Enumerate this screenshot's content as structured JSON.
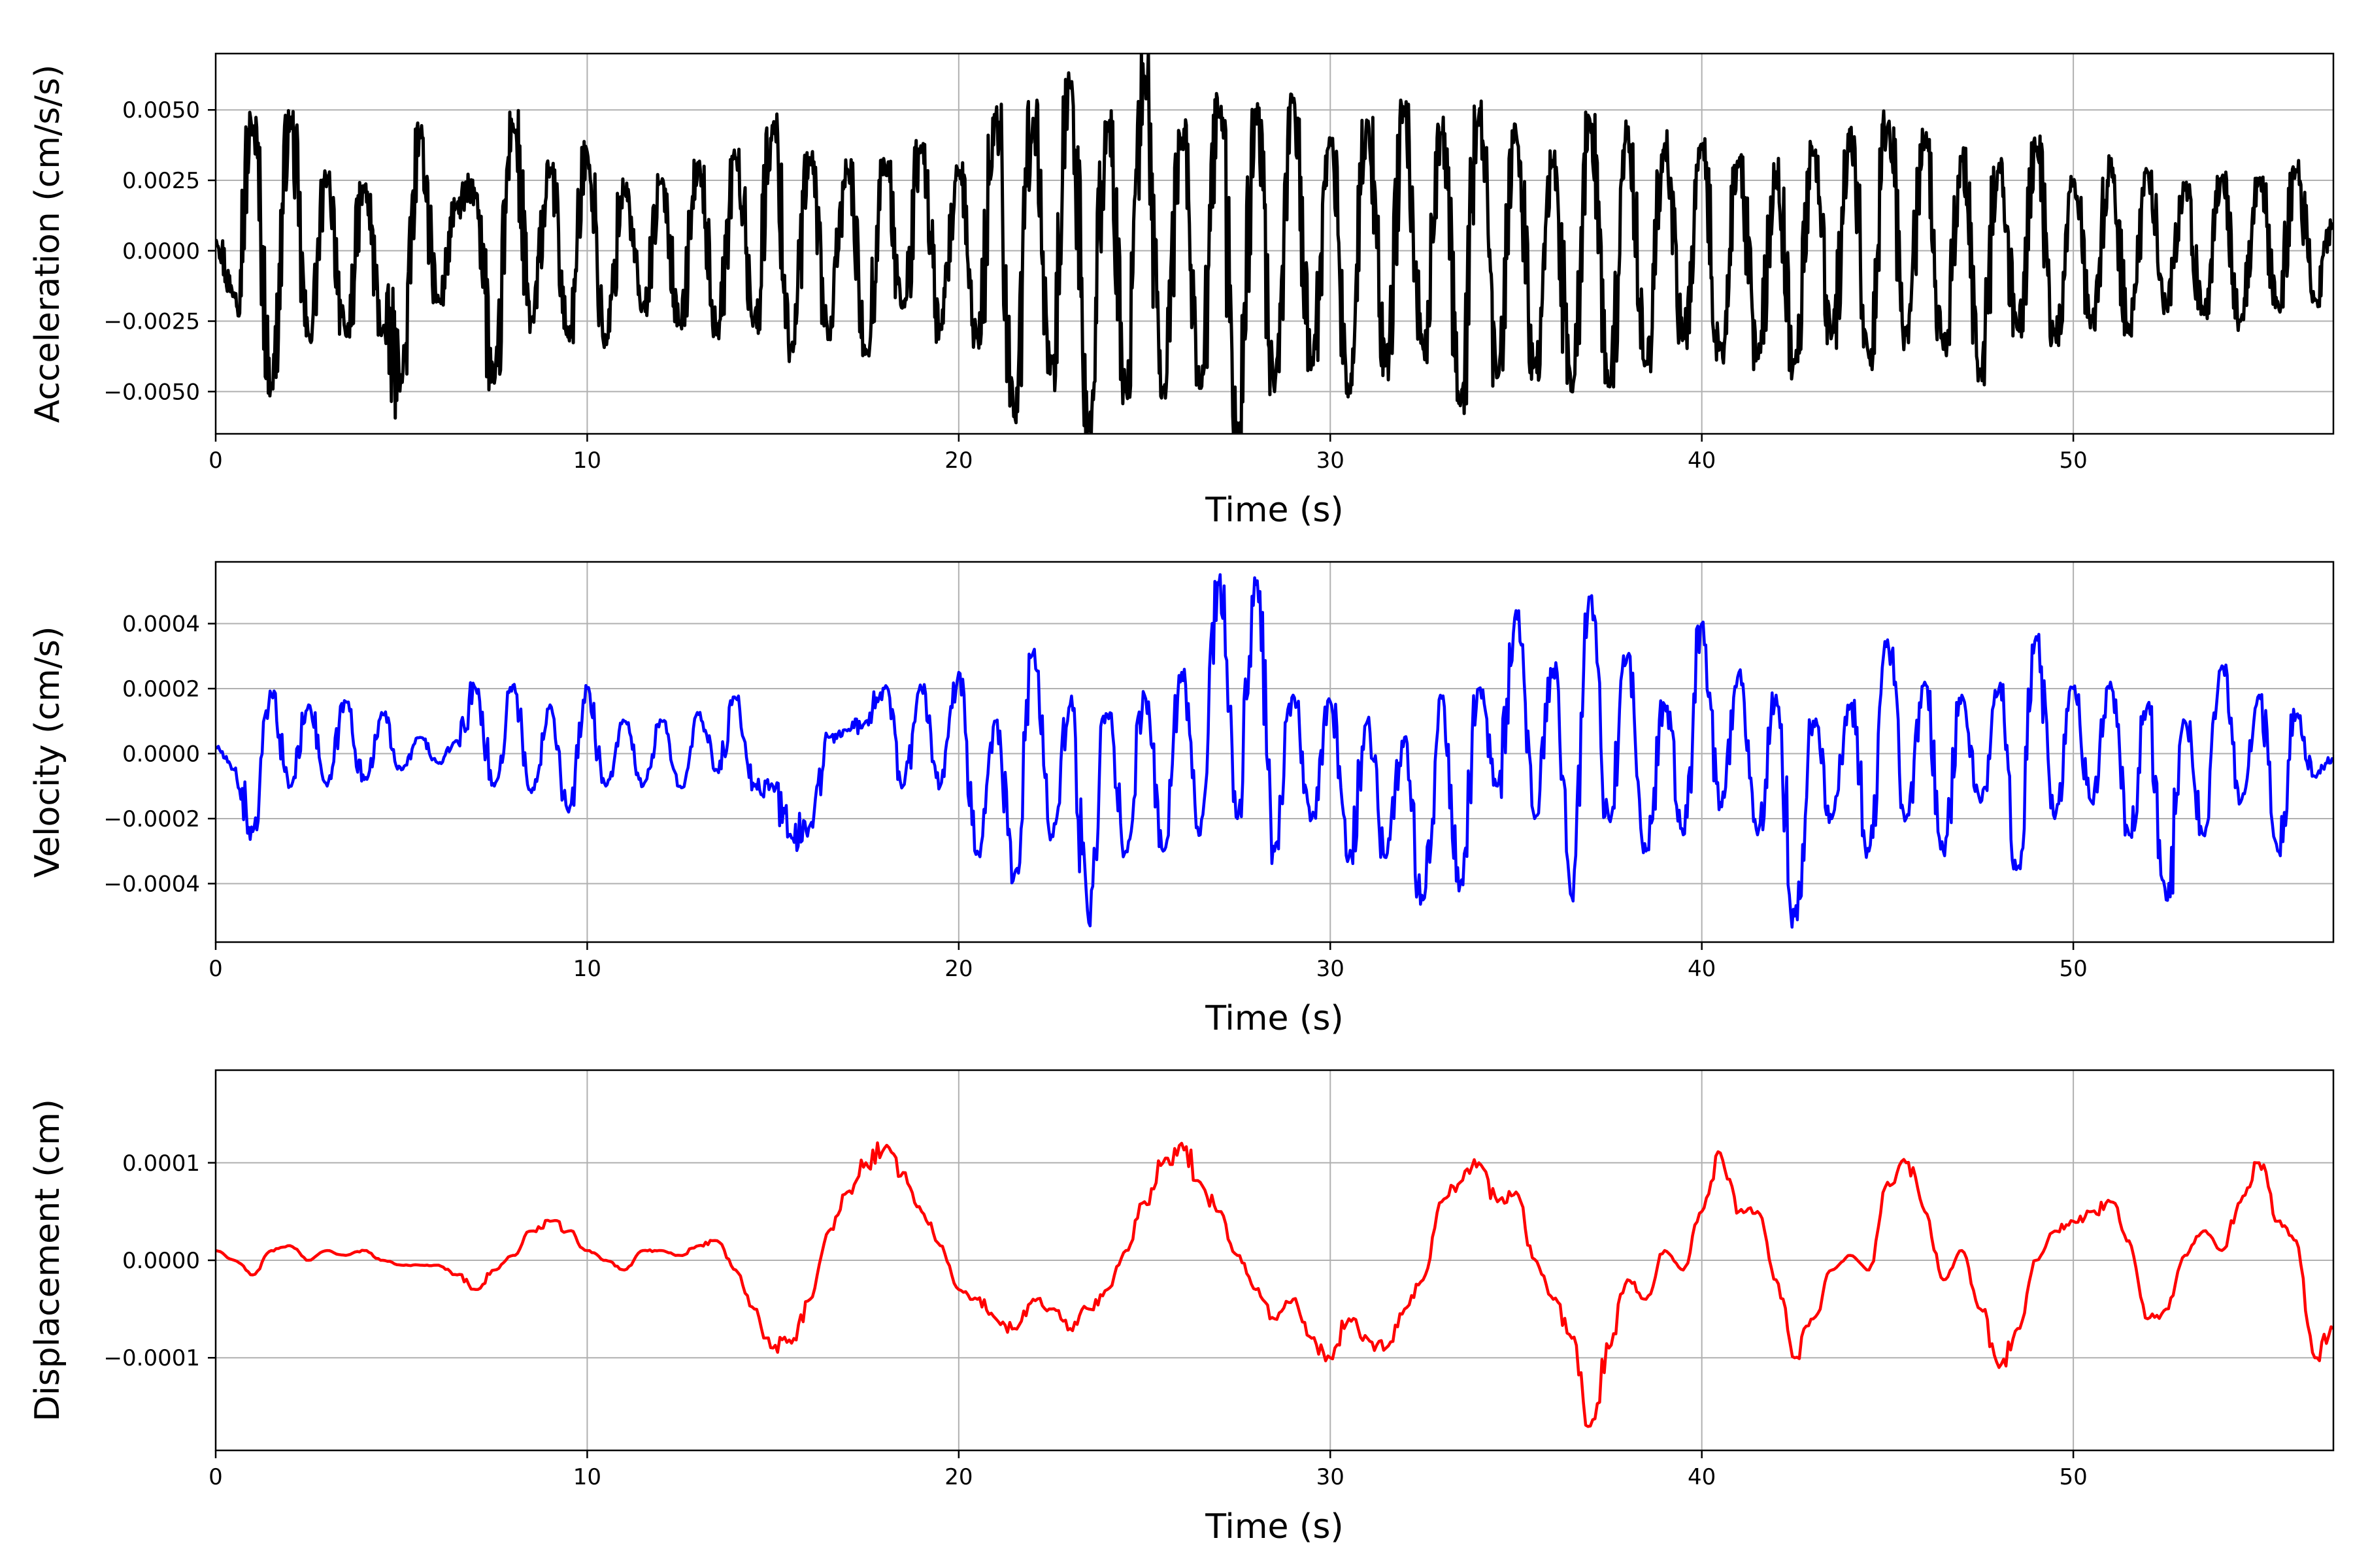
{
  "chart_data": [
    {
      "type": "line",
      "xlabel": "Time (s)",
      "ylabel": "Acceleration (cm/s/s)",
      "xlim": [
        0,
        57
      ],
      "ylim": [
        -0.0065,
        0.007
      ],
      "xticks": [
        0,
        10,
        20,
        30,
        40,
        50
      ],
      "xtick_labels": [
        "0",
        "10",
        "20",
        "30",
        "40",
        "50"
      ],
      "yticks": [
        -0.005,
        -0.0025,
        0.0,
        0.0025,
        0.005
      ],
      "ytick_labels": [
        "−0.0050",
        "−0.0025",
        "0.0000",
        "0.0025",
        "0.0050"
      ],
      "grid": true,
      "series": [
        {
          "color": "#000000",
          "x": [
            0,
            0.5,
            1,
            1.5,
            2,
            2.5,
            3,
            3.5,
            4,
            4.5,
            5,
            5.5,
            6,
            6.5,
            7,
            7.5,
            8,
            8.5,
            9,
            9.5,
            10,
            10.5,
            11,
            11.5,
            12,
            12.5,
            13,
            13.5,
            14,
            14.5,
            15,
            15.5,
            16,
            16.5,
            17,
            17.5,
            18,
            18.5,
            19,
            19.5,
            20,
            20.5,
            21,
            21.5,
            22,
            22.5,
            23,
            23.5,
            24,
            24.5,
            25,
            25.5,
            26,
            26.5,
            27,
            27.5,
            28,
            28.5,
            29,
            29.5,
            30,
            30.5,
            31,
            31.5,
            32,
            32.5,
            33,
            33.5,
            34,
            34.5,
            35,
            35.5,
            36,
            36.5,
            37,
            37.5,
            38,
            38.5,
            39,
            39.5,
            40,
            40.5,
            41,
            41.5,
            42,
            42.5,
            43,
            43.5,
            44,
            44.5,
            45,
            45.5,
            46,
            46.5,
            47,
            47.5,
            48,
            48.5,
            49,
            49.5,
            50,
            50.5,
            51,
            51.5,
            52,
            52.5,
            53,
            53.5,
            54,
            54.5,
            55,
            55.5,
            56,
            56.5,
            57
          ],
          "y": [
            0.0004,
            -0.0015,
            0.0044,
            -0.0047,
            0.0045,
            -0.003,
            0.0025,
            -0.003,
            0.0022,
            -0.0028,
            -0.0044,
            0.004,
            -0.0018,
            0.0016,
            0.002,
            -0.0047,
            0.0045,
            -0.0025,
            0.0028,
            -0.003,
            0.0035,
            -0.0032,
            0.0022,
            -0.002,
            0.0024,
            -0.0025,
            0.003,
            -0.0028,
            0.0033,
            -0.0024,
            0.0044,
            -0.0034,
            0.0032,
            -0.003,
            0.0029,
            -0.0035,
            0.0031,
            -0.002,
            0.0036,
            -0.0028,
            0.0027,
            -0.0031,
            0.0048,
            -0.0057,
            0.0047,
            -0.004,
            0.006,
            -0.0064,
            0.0045,
            -0.0048,
            0.0062,
            -0.005,
            0.004,
            -0.0046,
            0.005,
            -0.0062,
            0.0047,
            -0.005,
            0.0053,
            -0.004,
            0.004,
            -0.0049,
            0.0045,
            -0.004,
            0.0048,
            -0.0035,
            0.0042,
            -0.0055,
            0.0048,
            -0.0045,
            0.0042,
            -0.004,
            0.003,
            -0.005,
            0.0045,
            -0.0048,
            0.0042,
            -0.004,
            0.0038,
            -0.003,
            0.0036,
            -0.0035,
            0.0031,
            -0.0038,
            0.0028,
            -0.004,
            0.0034,
            -0.003,
            0.0042,
            -0.0038,
            0.0044,
            -0.003,
            0.0038,
            -0.0035,
            0.0032,
            -0.0042,
            0.0031,
            -0.0028,
            0.0036,
            -0.003,
            0.0024,
            -0.0025,
            0.0031,
            -0.0028,
            0.0028,
            -0.002,
            0.0022,
            -0.0022,
            0.0026,
            -0.0025,
            0.0025,
            -0.0018,
            0.0028,
            -0.0017,
            0.0008
          ]
        }
      ]
    },
    {
      "type": "line",
      "xlabel": "Time (s)",
      "ylabel": "Velocity (cm/s)",
      "xlim": [
        0,
        57
      ],
      "ylim": [
        -0.00058,
        0.00059
      ],
      "xticks": [
        0,
        10,
        20,
        30,
        40,
        50
      ],
      "xtick_labels": [
        "0",
        "10",
        "20",
        "30",
        "40",
        "50"
      ],
      "yticks": [
        -0.0004,
        -0.0002,
        0.0,
        0.0002,
        0.0004
      ],
      "ytick_labels": [
        "−0.0004",
        "−0.0002",
        "0.0000",
        "0.0002",
        "0.0004"
      ],
      "grid": true,
      "series": [
        {
          "color": "#0000ff",
          "x": [
            0,
            0.5,
            1,
            1.5,
            2,
            2.5,
            3,
            3.5,
            4,
            4.5,
            5,
            5.5,
            6,
            6.5,
            7,
            7.5,
            8,
            8.5,
            9,
            9.5,
            10,
            10.5,
            11,
            11.5,
            12,
            12.5,
            13,
            13.5,
            14,
            14.5,
            15,
            15.5,
            16,
            16.5,
            17,
            17.5,
            18,
            18.5,
            19,
            19.5,
            20,
            20.5,
            21,
            21.5,
            22,
            22.5,
            23,
            23.5,
            24,
            24.5,
            25,
            25.5,
            26,
            26.5,
            27,
            27.5,
            28,
            28.5,
            29,
            29.5,
            30,
            30.5,
            31,
            31.5,
            32,
            32.5,
            33,
            33.5,
            34,
            34.5,
            35,
            35.5,
            36,
            36.5,
            37,
            37.5,
            38,
            38.5,
            39,
            39.5,
            40,
            40.5,
            41,
            41.5,
            42,
            42.5,
            43,
            43.5,
            44,
            44.5,
            45,
            45.5,
            46,
            46.5,
            47,
            47.5,
            48,
            48.5,
            49,
            49.5,
            50,
            50.5,
            51,
            51.5,
            52,
            52.5,
            53,
            53.5,
            54,
            54.5,
            55,
            55.5,
            56,
            56.5,
            57
          ],
          "y": [
            2e-05,
            -5e-05,
            -0.00024,
            0.00018,
            -0.0001,
            0.00015,
            -0.0001,
            0.00016,
            -8e-05,
            0.00012,
            -5e-05,
            5e-05,
            -3e-05,
            4e-05,
            0.0002,
            -0.0001,
            0.00021,
            -0.00012,
            0.00015,
            -0.00018,
            0.0002,
            -0.0001,
            0.0001,
            -0.0001,
            0.0001,
            -0.0001,
            0.00012,
            -5e-05,
            0.00017,
            -0.0001,
            -0.0001,
            -0.00026,
            -0.00022,
            5e-05,
            7e-05,
            0.0001,
            0.0002,
            -0.0001,
            0.0002,
            -0.0001,
            0.00025,
            -0.0003,
            0.0001,
            -0.00037,
            0.00031,
            -0.00025,
            0.00015,
            -0.00052,
            0.00012,
            -0.0003,
            0.00018,
            -0.0003,
            0.00025,
            -0.00025,
            0.00052,
            -0.0002,
            0.00052,
            -0.0003,
            0.00018,
            -0.0002,
            0.00016,
            -0.00032,
            0.0001,
            -0.00032,
            5e-05,
            -0.00045,
            0.00017,
            -0.0004,
            0.0002,
            -0.0001,
            0.00044,
            -0.0002,
            0.00026,
            -0.00044,
            0.00048,
            -0.0002,
            0.0003,
            -0.0003,
            0.00015,
            -0.00025,
            0.0004,
            -0.00015,
            0.00025,
            -0.00025,
            0.00018,
            -0.0005,
            0.0001,
            -0.0002,
            0.00015,
            -0.0003,
            0.00035,
            -0.0002,
            0.00022,
            -0.0003,
            0.00018,
            -0.00015,
            0.0002,
            -0.00035,
            0.00036,
            -0.0002,
            0.0002,
            -0.00015,
            0.00022,
            -0.00025,
            0.00015,
            -0.00045,
            0.0001,
            -0.00025,
            0.00027,
            -0.00015,
            0.00018,
            -0.0003,
            0.00012,
            -7e-05,
            -2e-05
          ]
        }
      ]
    },
    {
      "type": "line",
      "xlabel": "Time (s)",
      "ylabel": "Displacement (cm)",
      "xlim": [
        0,
        57
      ],
      "ylim": [
        -0.000195,
        0.000195
      ],
      "xticks": [
        0,
        10,
        20,
        30,
        40,
        50
      ],
      "xtick_labels": [
        "0",
        "10",
        "20",
        "30",
        "40",
        "50"
      ],
      "yticks": [
        -0.0001,
        0.0,
        0.0001
      ],
      "ytick_labels": [
        "−0.0001",
        "0.0000",
        "0.0001"
      ],
      "grid": true,
      "series": [
        {
          "color": "#ff0000",
          "x": [
            0,
            0.5,
            1,
            1.5,
            2,
            2.5,
            3,
            3.5,
            4,
            4.5,
            5,
            5.5,
            6,
            6.5,
            7,
            7.5,
            8,
            8.5,
            9,
            9.5,
            10,
            10.5,
            11,
            11.5,
            12,
            12.5,
            13,
            13.5,
            14,
            14.5,
            15,
            15.5,
            16,
            16.5,
            17,
            17.5,
            18,
            18.5,
            19,
            19.5,
            20,
            20.5,
            21,
            21.5,
            22,
            22.5,
            23,
            23.5,
            24,
            24.5,
            25,
            25.5,
            26,
            26.5,
            27,
            27.5,
            28,
            28.5,
            29,
            29.5,
            30,
            30.5,
            31,
            31.5,
            32,
            32.5,
            33,
            33.5,
            34,
            34.5,
            35,
            35.5,
            36,
            36.5,
            37,
            37.5,
            38,
            38.5,
            39,
            39.5,
            40,
            40.5,
            41,
            41.5,
            42,
            42.5,
            43,
            43.5,
            44,
            44.5,
            45,
            45.5,
            46,
            46.5,
            47,
            47.5,
            48,
            48.5,
            49,
            49.5,
            50,
            50.5,
            51,
            51.5,
            52,
            52.5,
            53,
            53.5,
            54,
            54.5,
            55,
            55.5,
            56,
            56.5,
            57
          ],
          "y": [
            1e-05,
            0,
            -1.5e-05,
            1e-05,
            1.5e-05,
            0,
            1e-05,
            5e-06,
            1e-05,
            0,
            -5e-06,
            -5e-06,
            -5e-06,
            -1.5e-05,
            -3e-05,
            -1e-05,
            5e-06,
            3e-05,
            4e-05,
            3e-05,
            1e-05,
            0,
            -1e-05,
            1e-05,
            1e-05,
            5e-06,
            1.5e-05,
            2e-05,
            -1e-05,
            -5e-05,
            -9e-05,
            -8.5e-05,
            -4e-05,
            3e-05,
            7e-05,
            0.0001,
            0.000115,
            9e-05,
            5e-05,
            1.5e-05,
            -3e-05,
            -4e-05,
            -6e-05,
            -7e-05,
            -4e-05,
            -5e-05,
            -7e-05,
            -5e-05,
            -3e-05,
            1e-05,
            6e-05,
            0.0001,
            0.00012,
            8e-05,
            5e-05,
            5e-06,
            -3e-05,
            -6e-05,
            -4e-05,
            -8e-05,
            -0.0001,
            -6e-05,
            -8e-05,
            -9e-05,
            -5e-05,
            -2e-05,
            6e-05,
            8e-05,
            0.0001,
            6e-05,
            7e-05,
            1e-06,
            -4e-05,
            -8e-05,
            -0.00017,
            -9e-05,
            -2e-05,
            -4e-05,
            1e-05,
            -1e-05,
            5e-05,
            0.00011,
            5e-05,
            5e-05,
            -2e-05,
            -0.0001,
            -6e-05,
            -1e-05,
            5e-06,
            -1e-05,
            8e-05,
            0.0001,
            5e-05,
            -2e-05,
            1e-05,
            -5e-05,
            -0.00011,
            -7e-05,
            0,
            3e-05,
            4e-05,
            5e-05,
            6e-05,
            2e-05,
            -6e-05,
            -5e-05,
            5e-06,
            3e-05,
            1e-05,
            6e-05,
            0.0001,
            4e-05,
            2e-05,
            -0.0001,
            -7e-05
          ]
        }
      ]
    }
  ]
}
